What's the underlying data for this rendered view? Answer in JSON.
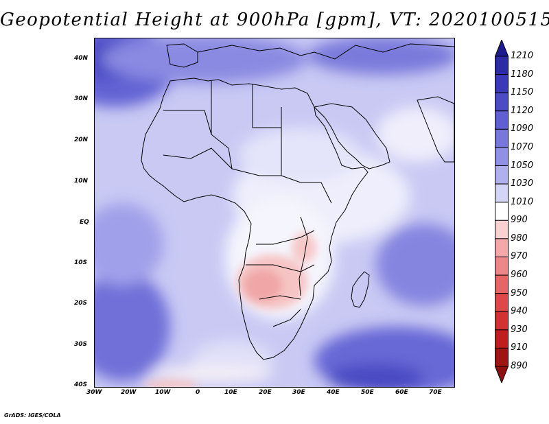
{
  "title": "Geopotential Height at 900hPa [gpm], VT: 2020100515",
  "footer": "GrADS: IGES/COLA",
  "lat_labels": [
    "40N",
    "30N",
    "20N",
    "10N",
    "EQ",
    "10S",
    "20S",
    "30S",
    "40S"
  ],
  "lon_labels": [
    "30W",
    "20W",
    "10W",
    "0",
    "10E",
    "20E",
    "30E",
    "40E",
    "50E",
    "60E",
    "70E"
  ],
  "colorbar": {
    "levels": [
      "1210",
      "1180",
      "1150",
      "1120",
      "1090",
      "1070",
      "1050",
      "1030",
      "1010",
      "990",
      "980",
      "970",
      "960",
      "950",
      "940",
      "930",
      "910",
      "890"
    ],
    "colors": [
      "#1c1c8e",
      "#2b2ba6",
      "#3a3ab8",
      "#4b4bc6",
      "#6060d2",
      "#7878dc",
      "#9090e4",
      "#b0b0ee",
      "#d4d4f7",
      "#ffffff",
      "#fbd0d0",
      "#f5a8a8",
      "#ee8888",
      "#e66666",
      "#de4848",
      "#d23232",
      "#c01e1e",
      "#a01414",
      "#8e0f0f"
    ]
  }
}
